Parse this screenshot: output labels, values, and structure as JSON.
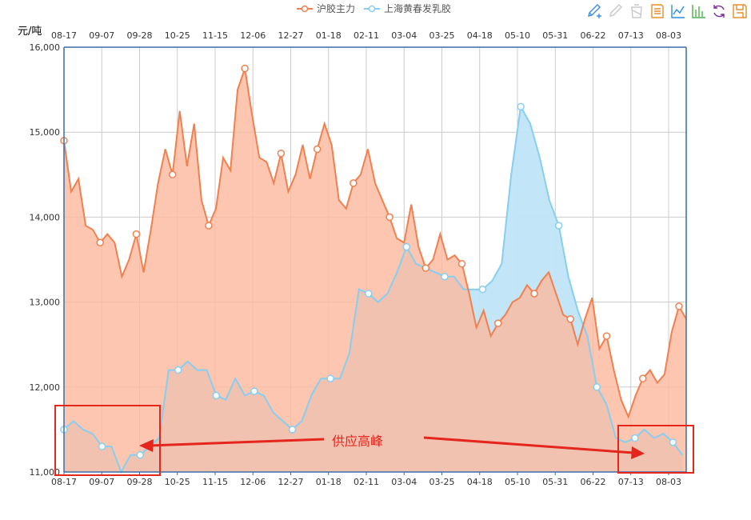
{
  "legend": [
    {
      "label": "沪胶主力",
      "color": "#f08050"
    },
    {
      "label": "上海黄春发乳胶",
      "color": "#87cef0"
    }
  ],
  "toolbox": [
    {
      "name": "mark-pen-icon",
      "color": "#3f8de0"
    },
    {
      "name": "mark-undo-icon",
      "color": "#c8c8c8"
    },
    {
      "name": "mark-clear-icon",
      "color": "#c8c8c8"
    },
    {
      "name": "data-view-icon",
      "color": "#e58f2a"
    },
    {
      "name": "line-chart-icon",
      "color": "#2d8de5"
    },
    {
      "name": "bar-chart-icon",
      "color": "#4caf50"
    },
    {
      "name": "restore-icon",
      "color": "#7b2a9a"
    },
    {
      "name": "save-image-icon",
      "color": "#e58f2a"
    }
  ],
  "chart_data": {
    "type": "area",
    "ylabel": "元/吨",
    "ylim": [
      11000,
      16000
    ],
    "yticks": [
      "11,000",
      "12,000",
      "13,000",
      "14,000",
      "15,000",
      "16,000"
    ],
    "xticks": [
      "08-17",
      "09-07",
      "09-28",
      "10-25",
      "11-15",
      "12-06",
      "12-27",
      "01-18",
      "02-11",
      "03-04",
      "03-25",
      "04-18",
      "05-10",
      "05-31",
      "06-22",
      "07-13",
      "08-03"
    ],
    "grid": true,
    "legend_position": "top-center",
    "series": [
      {
        "name": "沪胶主力",
        "color": "#f08050",
        "fill": "#fbb9a0",
        "values": [
          14900,
          14300,
          14450,
          13900,
          13850,
          13700,
          13800,
          13700,
          13300,
          13500,
          13800,
          13350,
          13850,
          14400,
          14800,
          14500,
          15250,
          14600,
          15100,
          14200,
          13900,
          14100,
          14700,
          14550,
          15500,
          15750,
          15200,
          14700,
          14650,
          14400,
          14750,
          14300,
          14500,
          14850,
          14450,
          14800,
          15100,
          14850,
          14200,
          14100,
          14400,
          14500,
          14800,
          14400,
          14200,
          14000,
          13750,
          13700,
          14150,
          13650,
          13400,
          13500,
          13800,
          13500,
          13550,
          13450,
          13100,
          12700,
          12900,
          12600,
          12750,
          12850,
          13000,
          13050,
          13200,
          13100,
          13250,
          13350,
          13100,
          12850,
          12800,
          12500,
          12800,
          13050,
          12450,
          12600,
          12200,
          11850,
          11650,
          11900,
          12100,
          12200,
          12050,
          12150,
          12650,
          12950,
          12800
        ]
      },
      {
        "name": "上海黄春发乳胶",
        "color": "#87cef0",
        "fill": "#bfe4f8",
        "values": [
          11500,
          11600,
          11500,
          11450,
          11300,
          11300,
          11000,
          11200,
          11200,
          11300,
          11400,
          12200,
          12200,
          12300,
          12200,
          12200,
          11900,
          11850,
          12100,
          11900,
          11950,
          11900,
          11700,
          11600,
          11500,
          11600,
          11900,
          12100,
          12100,
          12100,
          12400,
          13150,
          13100,
          13000,
          13100,
          13350,
          13650,
          13450,
          13400,
          13350,
          13300,
          13300,
          13150,
          13150,
          13150,
          13250,
          13450,
          14500,
          15300,
          15100,
          14700,
          14200,
          13900,
          13300,
          12900,
          12600,
          12000,
          11800,
          11400,
          11350,
          11400,
          11500,
          11400,
          11450,
          11350,
          11200
        ]
      }
    ],
    "annotation": "供应高峰"
  }
}
